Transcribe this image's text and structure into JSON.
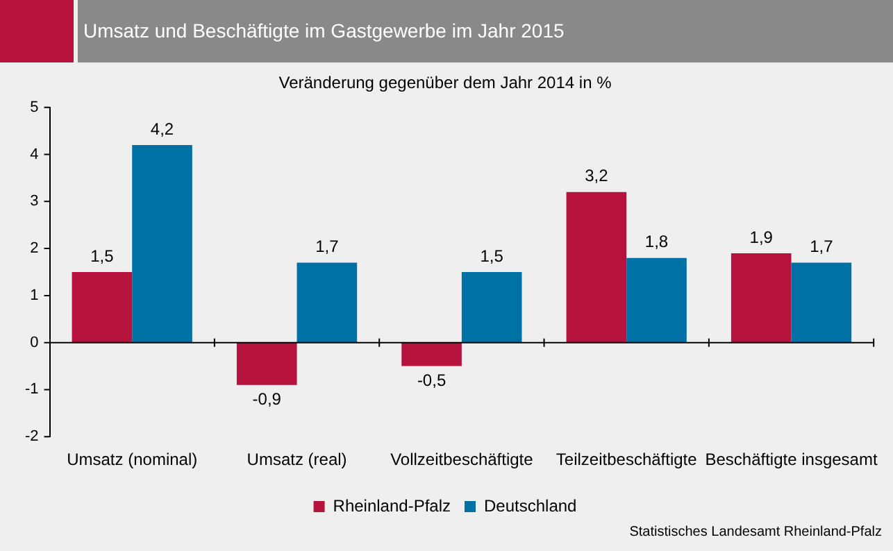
{
  "chart_data": {
    "type": "bar",
    "title": "Umsatz und Beschäftigte im Gastgewerbe im Jahr 2015",
    "subtitle": "Veränderung gegenüber dem Jahr 2014 in %",
    "categories": [
      "Umsatz (nominal)",
      "Umsatz (real)",
      "Vollzeitbeschäftigte",
      "Teilzeitbeschäftigte",
      "Beschäftigte insgesamt"
    ],
    "series": [
      {
        "name": "Rheinland-Pfalz",
        "color": "#b5123e",
        "values": [
          1.5,
          -0.9,
          -0.5,
          3.2,
          1.9
        ],
        "value_labels": [
          "1,5",
          "-0,9",
          "-0,5",
          "3,2",
          "1,9"
        ]
      },
      {
        "name": "Deutschland",
        "color": "#0071a4",
        "values": [
          4.2,
          1.7,
          1.5,
          1.8,
          1.7
        ],
        "value_labels": [
          "4,2",
          "1,7",
          "1,5",
          "1,8",
          "1,7"
        ]
      }
    ],
    "ylim": [
      -2,
      5
    ],
    "yticks": [
      -2,
      -1,
      0,
      1,
      2,
      3,
      4,
      5
    ],
    "legend": "bottom",
    "annotations": [
      "Statistisches Landesamt Rheinland-Pfalz"
    ]
  }
}
